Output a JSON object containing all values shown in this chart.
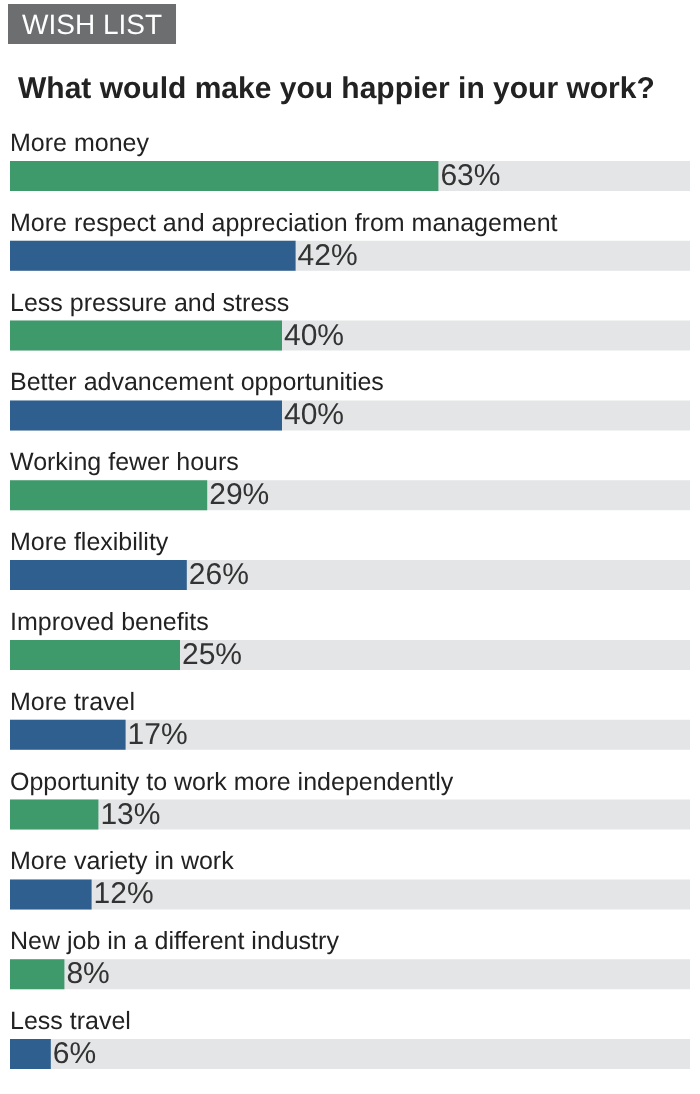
{
  "chart_data": {
    "type": "bar",
    "orientation": "horizontal",
    "title": "WISH LIST",
    "subtitle": "What would make you happier in your work?",
    "categories": [
      "More money",
      "More respect and appreciation from management",
      "Less pressure and stress",
      "Better advancement opportunities",
      "Working fewer hours",
      "More flexibility",
      "Improved benefits",
      "More travel",
      "Opportunity to work more independently",
      "More variety in work",
      "New job in a different industry",
      "Less travel"
    ],
    "values": [
      63,
      42,
      40,
      40,
      29,
      26,
      25,
      17,
      13,
      12,
      8,
      6
    ],
    "colors": [
      "#3f9a6b",
      "#2e5f8f",
      "#3f9a6b",
      "#2e5f8f",
      "#3f9a6b",
      "#2e5f8f",
      "#3f9a6b",
      "#2e5f8f",
      "#3f9a6b",
      "#2e5f8f",
      "#3f9a6b",
      "#2e5f8f"
    ],
    "value_labels": [
      "63%",
      "42%",
      "40%",
      "40%",
      "29%",
      "26%",
      "25%",
      "17%",
      "13%",
      "12%",
      "8%",
      "6%"
    ],
    "xlim": [
      0,
      100
    ],
    "tick_labels": "y"
  }
}
